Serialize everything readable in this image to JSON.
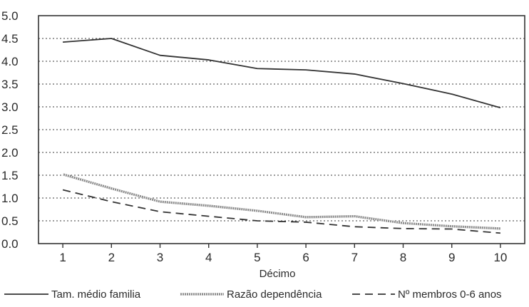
{
  "chart_data": {
    "type": "line",
    "title": "",
    "xlabel": "Décimo",
    "ylabel": "",
    "x": [
      1,
      2,
      3,
      4,
      5,
      6,
      7,
      8,
      9,
      10
    ],
    "ylim": [
      0.0,
      5.0
    ],
    "yticks": [
      "0.0",
      "0.5",
      "1.0",
      "1.5",
      "2.0",
      "2.5",
      "3.0",
      "3.5",
      "4.0",
      "4.5",
      "5.0"
    ],
    "xticks": [
      "1",
      "2",
      "3",
      "4",
      "5",
      "6",
      "7",
      "8",
      "9",
      "10"
    ],
    "grid": "horizontal dotted",
    "legend_position": "bottom",
    "series": [
      {
        "name": "Tam. médio familia",
        "style": "solid",
        "color": "#333333",
        "values": [
          4.42,
          4.5,
          4.13,
          4.03,
          3.84,
          3.81,
          3.72,
          3.51,
          3.28,
          2.98
        ]
      },
      {
        "name": "Razão dependência",
        "style": "hatched",
        "color": "#6b6b6b",
        "values": [
          1.52,
          1.21,
          0.92,
          0.83,
          0.72,
          0.58,
          0.6,
          0.45,
          0.38,
          0.33
        ]
      },
      {
        "name": "Nº membros 0-6 anos",
        "style": "dashed",
        "color": "#333333",
        "values": [
          1.18,
          0.92,
          0.7,
          0.6,
          0.5,
          0.47,
          0.37,
          0.33,
          0.32,
          0.23
        ]
      }
    ]
  }
}
